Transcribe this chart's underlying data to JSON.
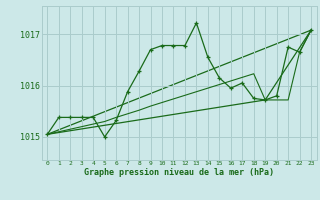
{
  "title": "Graphe pression niveau de la mer (hPa)",
  "bg_color": "#cce8e8",
  "grid_color": "#aacccc",
  "line_color": "#1a6b1a",
  "xlim": [
    -0.5,
    23.5
  ],
  "ylim": [
    1014.55,
    1017.55
  ],
  "yticks": [
    1015,
    1016,
    1017
  ],
  "xticks": [
    0,
    1,
    2,
    3,
    4,
    5,
    6,
    7,
    8,
    9,
    10,
    11,
    12,
    13,
    14,
    15,
    16,
    17,
    18,
    19,
    20,
    21,
    22,
    23
  ],
  "series1_x": [
    0,
    1,
    2,
    3,
    4,
    5,
    6,
    7,
    8,
    9,
    10,
    11,
    12,
    13,
    14,
    15,
    16,
    17,
    18,
    19,
    20,
    21,
    22,
    23
  ],
  "series1_y": [
    1015.05,
    1015.38,
    1015.38,
    1015.38,
    1015.38,
    1015.0,
    1015.32,
    1015.88,
    1016.28,
    1016.7,
    1016.78,
    1016.78,
    1016.78,
    1017.22,
    1016.55,
    1016.15,
    1015.95,
    1016.05,
    1015.75,
    1015.72,
    1015.8,
    1016.75,
    1016.65,
    1017.08
  ],
  "series2_x": [
    0,
    1,
    2,
    3,
    4,
    5,
    6,
    7,
    8,
    9,
    10,
    11,
    12,
    13,
    14,
    15,
    16,
    17,
    18,
    19,
    20,
    21,
    22,
    23
  ],
  "series2_y": [
    1015.05,
    1015.1,
    1015.15,
    1015.2,
    1015.25,
    1015.3,
    1015.38,
    1015.45,
    1015.52,
    1015.6,
    1015.67,
    1015.74,
    1015.81,
    1015.88,
    1015.95,
    1016.02,
    1016.09,
    1016.16,
    1016.23,
    1015.72,
    1015.72,
    1015.72,
    1016.65,
    1017.08
  ],
  "series3_x": [
    0,
    23
  ],
  "series3_y": [
    1015.05,
    1017.08
  ],
  "series4_x": [
    0,
    19,
    23
  ],
  "series4_y": [
    1015.05,
    1015.72,
    1017.08
  ]
}
